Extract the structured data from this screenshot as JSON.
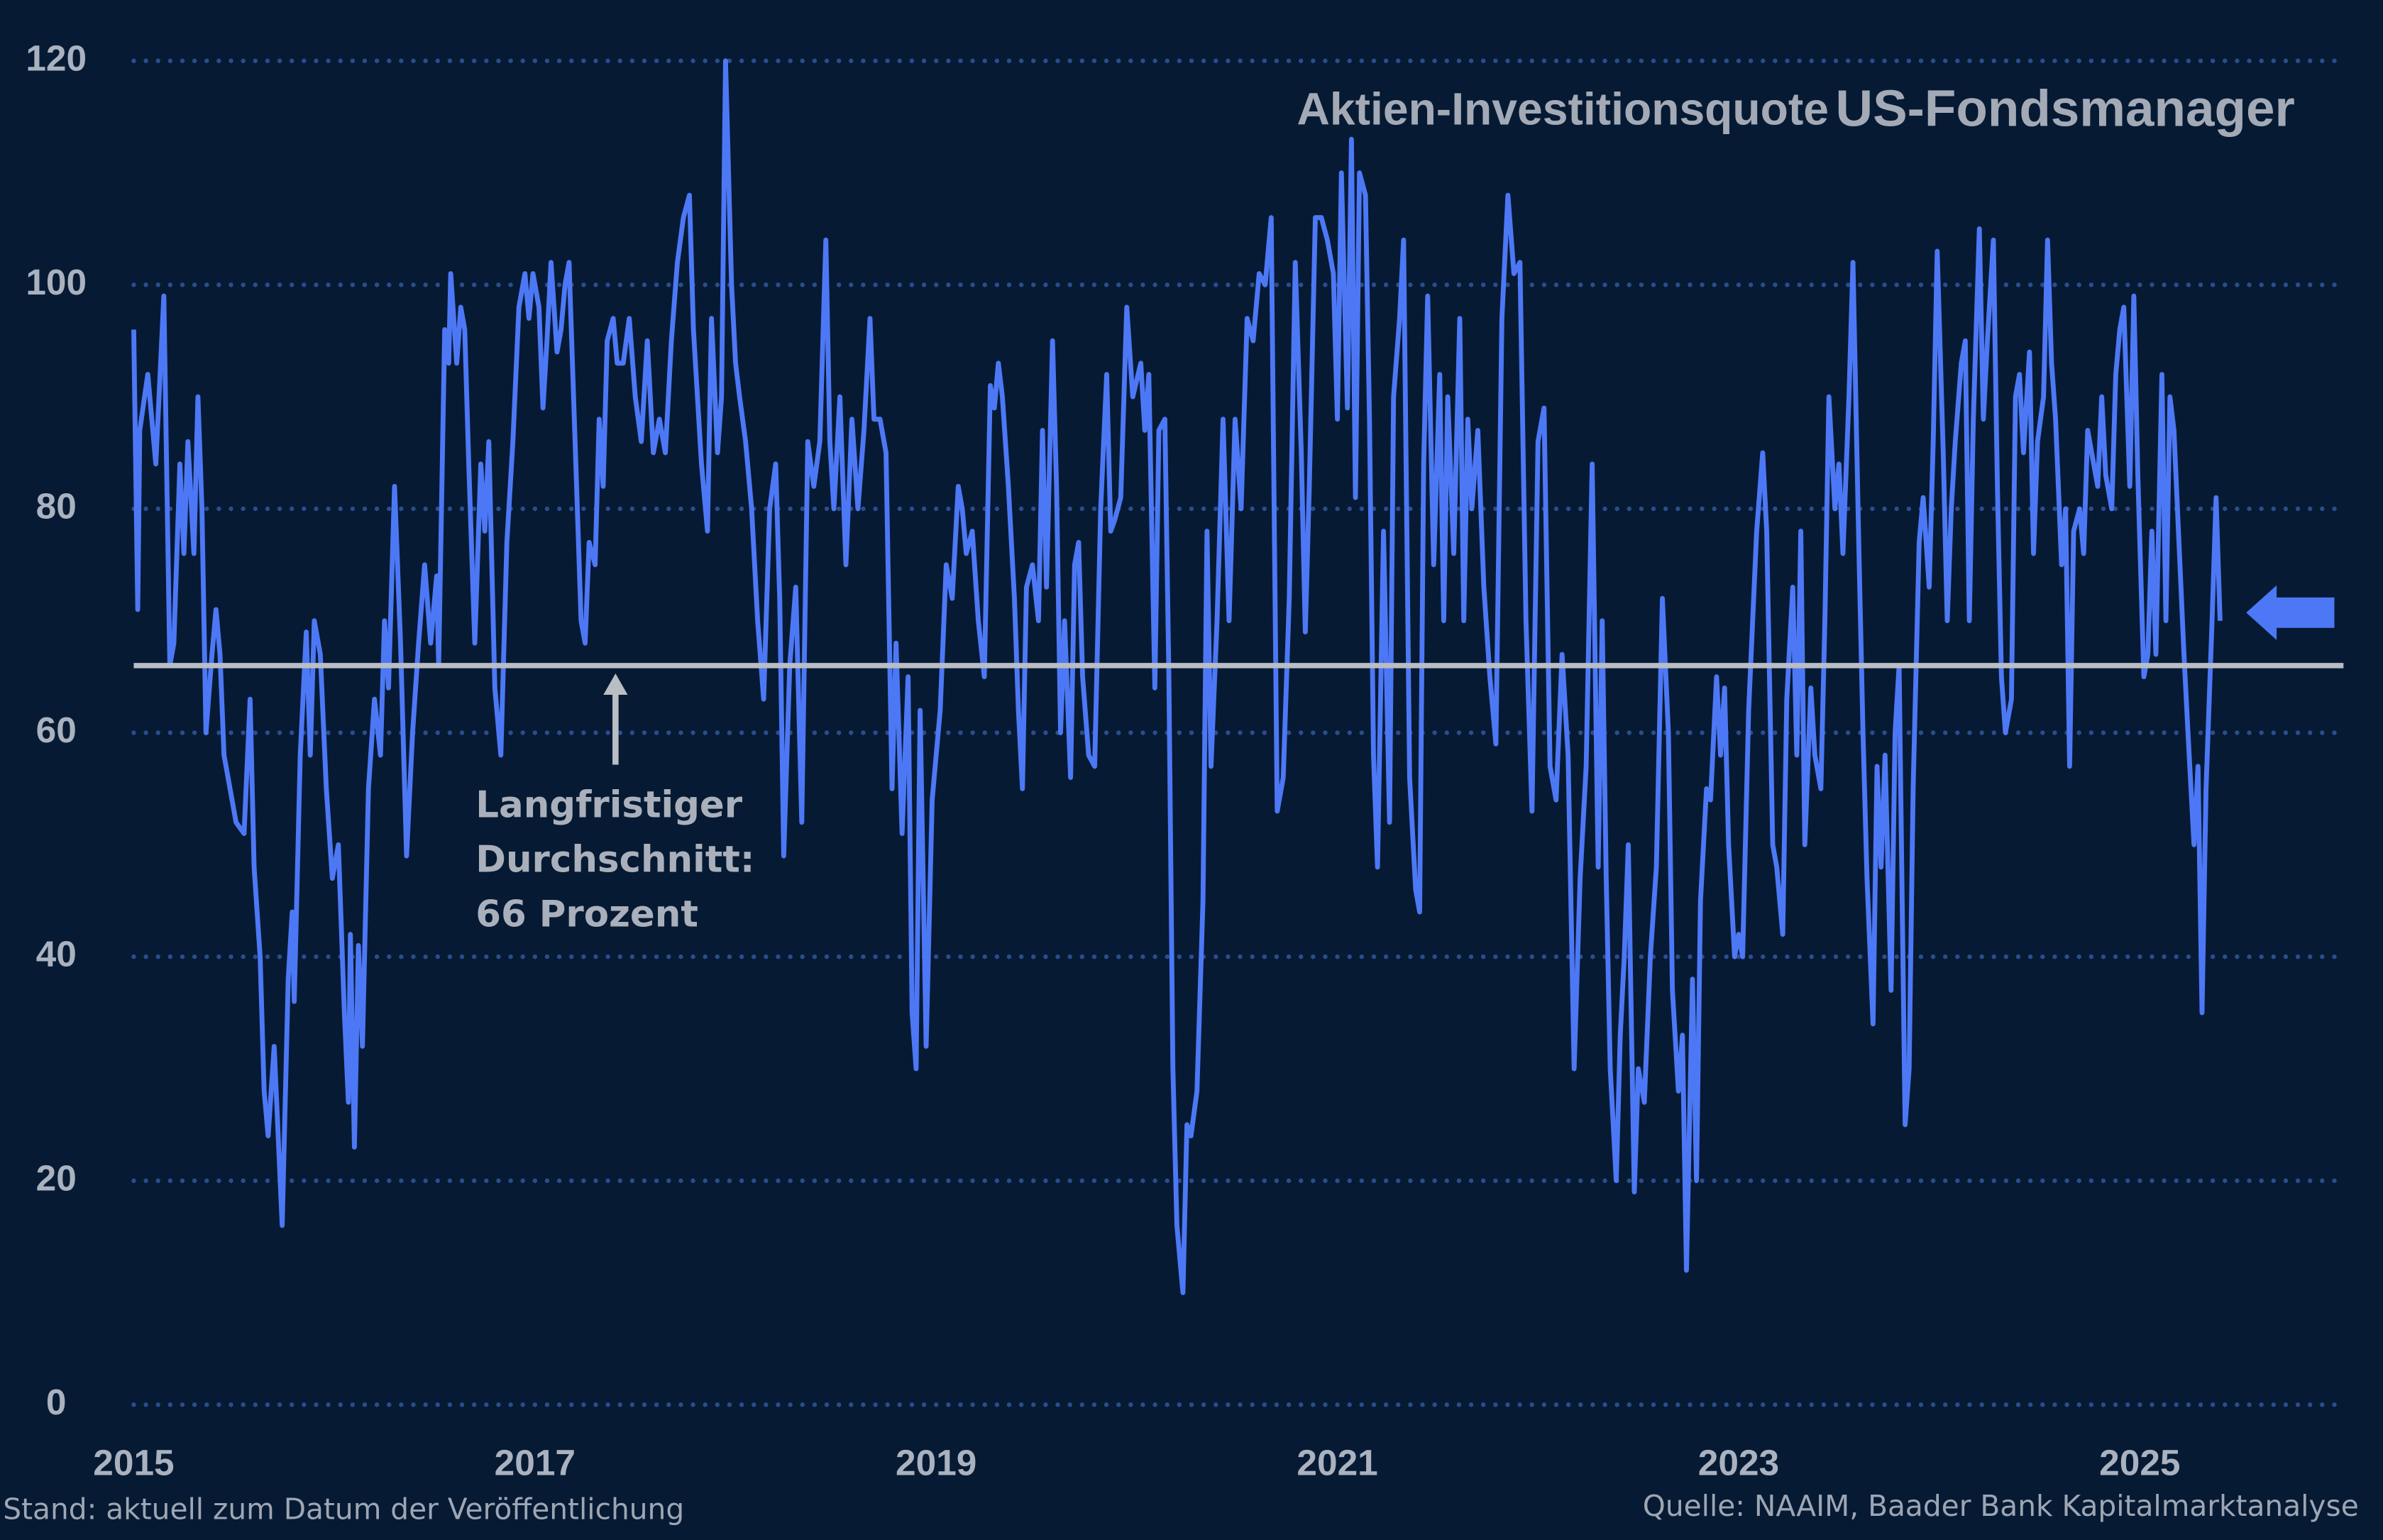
{
  "chart_data": {
    "type": "line",
    "title": [
      "Aktien-Investitionsquote",
      "US-Fondsmanager"
    ],
    "annotation": [
      "Langfristiger",
      "Durchschnitt:",
      "66 Prozent"
    ],
    "reference_line": 66,
    "footer_left": "Stand: aktuell zum Datum der Veröffentlichung",
    "footer_right": "Quelle: NAAIM, Baader Bank Kapitalmarktanalyse",
    "color": "#4d78f5",
    "reference_color": "#b9bdc4",
    "grid": true,
    "xlim": [
      2015,
      2026
    ],
    "xticks": [
      2015,
      2017,
      2019,
      2021,
      2023,
      2025
    ],
    "ylim": [
      0,
      120
    ],
    "yticks": [
      0,
      20,
      40,
      60,
      80,
      100,
      120
    ],
    "x": [
      2015,
      2015.02,
      2015.03,
      2015.07,
      2015.09,
      2015.11,
      2015.15,
      2015.18,
      2015.2,
      2015.23,
      2015.25,
      2015.27,
      2015.3,
      2015.32,
      2015.34,
      2015.36,
      2015.39,
      2015.41,
      2015.43,
      2015.45,
      2015.48,
      2015.51,
      2015.55,
      2015.58,
      2015.6,
      2015.63,
      2015.65,
      2015.67,
      2015.7,
      2015.74,
      2015.77,
      2015.79,
      2015.8,
      2015.83,
      2015.86,
      2015.88,
      2015.9,
      2015.93,
      2015.96,
      2015.99,
      2016.02,
      2016.05,
      2016.07,
      2016.08,
      2016.1,
      2016.12,
      2016.14,
      2016.17,
      2016.2,
      2016.23,
      2016.25,
      2016.27,
      2016.3,
      2016.33,
      2016.36,
      2016.39,
      2016.42,
      2016.45,
      2016.48,
      2016.51,
      2016.52,
      2016.55,
      2016.57,
      2016.58,
      2016.61,
      2016.63,
      2016.65,
      2016.67,
      2016.7,
      2016.73,
      2016.75,
      2016.77,
      2016.8,
      2016.83,
      2016.86,
      2016.89,
      2016.92,
      2016.95,
      2016.97,
      2016.99,
      2017.02,
      2017.04,
      2017.06,
      2017.08,
      2017.11,
      2017.13,
      2017.15,
      2017.17,
      2017.2,
      2017.23,
      2017.25,
      2017.27,
      2017.3,
      2017.32,
      2017.34,
      2017.36,
      2017.39,
      2017.41,
      2017.44,
      2017.47,
      2017.5,
      2017.53,
      2017.56,
      2017.59,
      2017.62,
      2017.65,
      2017.68,
      2017.71,
      2017.74,
      2017.77,
      2017.79,
      2017.81,
      2017.83,
      2017.86,
      2017.88,
      2017.91,
      2017.93,
      2017.95,
      2017.98,
      2018,
      2018.02,
      2018.05,
      2018.08,
      2018.11,
      2018.14,
      2018.17,
      2018.2,
      2018.22,
      2018.24,
      2018.27,
      2018.3,
      2018.33,
      2018.36,
      2018.39,
      2018.42,
      2018.45,
      2018.47,
      2018.49,
      2018.52,
      2018.55,
      2018.58,
      2018.61,
      2018.64,
      2018.67,
      2018.69,
      2018.72,
      2018.75,
      2018.78,
      2018.8,
      2018.83,
      2018.86,
      2018.88,
      2018.9,
      2018.92,
      2018.95,
      2018.98,
      2019.02,
      2019.05,
      2019.08,
      2019.11,
      2019.13,
      2019.15,
      2019.18,
      2019.21,
      2019.24,
      2019.27,
      2019.29,
      2019.31,
      2019.33,
      2019.36,
      2019.39,
      2019.41,
      2019.43,
      2019.45,
      2019.48,
      2019.51,
      2019.53,
      2019.55,
      2019.58,
      2019.6,
      2019.62,
      2019.64,
      2019.67,
      2019.69,
      2019.71,
      2019.73,
      2019.76,
      2019.79,
      2019.82,
      2019.85,
      2019.87,
      2019.89,
      2019.92,
      2019.95,
      2019.98,
      2020.02,
      2020.04,
      2020.06,
      2020.09,
      2020.11,
      2020.14,
      2020.16,
      2020.18,
      2020.2,
      2020.23,
      2020.25,
      2020.27,
      2020.3,
      2020.33,
      2020.35,
      2020.37,
      2020.4,
      2020.43,
      2020.46,
      2020.49,
      2020.52,
      2020.55,
      2020.58,
      2020.61,
      2020.64,
      2020.67,
      2020.7,
      2020.73,
      2020.76,
      2020.79,
      2020.82,
      2020.84,
      2020.86,
      2020.89,
      2020.92,
      2020.95,
      2020.98,
      2021,
      2021.02,
      2021.05,
      2021.07,
      2021.09,
      2021.11,
      2021.14,
      2021.16,
      2021.18,
      2021.2,
      2021.23,
      2021.26,
      2021.28,
      2021.31,
      2021.33,
      2021.36,
      2021.39,
      2021.41,
      2021.43,
      2021.45,
      2021.48,
      2021.51,
      2021.53,
      2021.55,
      2021.58,
      2021.61,
      2021.63,
      2021.65,
      2021.67,
      2021.7,
      2021.73,
      2021.76,
      2021.79,
      2021.82,
      2021.85,
      2021.88,
      2021.91,
      2021.94,
      2021.97,
      2022,
      2022.03,
      2022.06,
      2022.09,
      2022.12,
      2022.15,
      2022.18,
      2022.21,
      2022.24,
      2022.27,
      2022.3,
      2022.32,
      2022.34,
      2022.36,
      2022.39,
      2022.41,
      2022.43,
      2022.45,
      2022.48,
      2022.5,
      2022.53,
      2022.56,
      2022.59,
      2022.62,
      2022.65,
      2022.67,
      2022.7,
      2022.72,
      2022.74,
      2022.77,
      2022.79,
      2022.81,
      2022.84,
      2022.86,
      2022.89,
      2022.91,
      2022.93,
      2022.95,
      2022.98,
      2023,
      2023.02,
      2023.05,
      2023.07,
      2023.09,
      2023.12,
      2023.14,
      2023.17,
      2023.19,
      2023.22,
      2023.24,
      2023.27,
      2023.29,
      2023.31,
      2023.33,
      2023.36,
      2023.38,
      2023.41,
      2023.43,
      2023.45,
      2023.48,
      2023.5,
      2023.52,
      2023.55,
      2023.57,
      2023.6,
      2023.62,
      2023.64,
      2023.67,
      2023.69,
      2023.71,
      2023.73,
      2023.76,
      2023.78,
      2023.8,
      2023.83,
      2023.85,
      2023.87,
      2023.9,
      2023.92,
      2023.95,
      2023.97,
      2023.99,
      2024.02,
      2024.04,
      2024.06,
      2024.08,
      2024.11,
      2024.13,
      2024.15,
      2024.17,
      2024.2,
      2024.22,
      2024.24,
      2024.27,
      2024.29,
      2024.31,
      2024.33,
      2024.36,
      2024.38,
      2024.4,
      2024.42,
      2024.45,
      2024.47,
      2024.49,
      2024.52,
      2024.54,
      2024.56,
      2024.58,
      2024.61,
      2024.63,
      2024.65,
      2024.67,
      2024.7,
      2024.72,
      2024.74,
      2024.77,
      2024.79,
      2024.81,
      2024.83,
      2024.86,
      2024.88,
      2024.9,
      2024.92,
      2024.95,
      2024.97,
      2024.99,
      2025.02,
      2025.04,
      2025.06,
      2025.08,
      2025.11,
      2025.13,
      2025.15,
      2025.17,
      2025.2,
      2025.22,
      2025.24,
      2025.27,
      2025.29,
      2025.31,
      2025.33,
      2025.36,
      2025.38,
      2025.4
    ],
    "values": [
      96,
      71,
      87,
      92,
      88,
      84,
      99,
      66,
      68,
      84,
      76,
      86,
      76,
      90,
      80,
      60,
      67,
      71,
      67,
      58,
      55,
      52,
      51,
      63,
      48,
      40,
      28,
      24,
      32,
      16,
      38,
      44,
      36,
      58,
      69,
      58,
      70,
      67,
      55,
      47,
      50,
      35,
      27,
      42,
      23,
      41,
      32,
      55,
      63,
      58,
      70,
      64,
      82,
      68,
      49,
      60,
      68,
      75,
      68,
      74,
      66,
      96,
      93,
      101,
      93,
      98,
      96,
      84,
      68,
      84,
      78,
      86,
      64,
      58,
      77,
      86,
      98,
      101,
      97,
      101,
      98,
      89,
      95,
      102,
      94,
      96,
      100,
      102,
      86,
      70,
      68,
      77,
      75,
      88,
      82,
      95,
      97,
      93,
      93,
      97,
      90,
      86,
      95,
      85,
      88,
      85,
      95,
      102,
      106,
      108,
      96,
      90,
      84,
      78,
      97,
      85,
      90,
      120,
      100,
      93,
      90,
      86,
      80,
      70,
      63,
      80,
      84,
      72,
      49,
      66,
      73,
      52,
      86,
      82,
      86,
      104,
      86,
      80,
      90,
      75,
      88,
      80,
      87,
      97,
      88,
      88,
      85,
      55,
      68,
      51,
      65,
      35,
      30,
      62,
      32,
      54,
      62,
      75,
      72,
      82,
      80,
      76,
      78,
      70,
      65,
      91,
      89,
      93,
      90,
      82,
      72,
      62,
      55,
      73,
      75,
      70,
      87,
      73,
      95,
      82,
      60,
      70,
      56,
      75,
      77,
      65,
      58,
      57,
      80,
      92,
      78,
      79,
      81,
      98,
      90,
      93,
      87,
      92,
      64,
      87,
      88,
      65,
      30,
      16,
      10,
      25,
      24,
      28,
      45,
      78,
      57,
      70,
      88,
      70,
      88,
      80,
      97,
      95,
      101,
      100,
      106,
      53,
      56,
      72,
      102,
      85,
      69,
      82,
      106,
      106,
      104,
      101,
      88,
      110,
      89,
      113,
      81,
      110,
      108,
      88,
      58,
      48,
      78,
      52,
      90,
      97,
      104,
      56,
      46,
      44,
      84,
      99,
      75,
      92,
      70,
      90,
      76,
      97,
      70,
      88,
      80,
      87,
      73,
      65,
      59,
      97,
      108,
      101,
      102,
      70,
      53,
      86,
      89,
      57,
      54,
      67,
      58,
      30,
      47,
      57,
      84,
      48,
      70,
      47,
      30,
      20,
      33,
      40,
      50,
      19,
      30,
      27,
      40,
      48,
      72,
      60,
      37,
      28,
      33,
      12,
      38,
      20,
      45,
      55,
      54,
      65,
      58,
      64,
      50,
      40,
      42,
      40,
      62,
      70,
      78,
      85,
      78,
      50,
      48,
      42,
      63,
      73,
      58,
      78,
      50,
      64,
      58,
      55,
      70,
      90,
      80,
      84,
      76,
      90,
      102,
      76,
      60,
      47,
      34,
      57,
      48,
      58,
      37,
      60,
      66,
      25,
      30,
      55,
      77,
      81,
      73,
      86,
      103,
      85,
      70,
      80,
      86,
      93,
      95,
      70,
      88,
      105,
      88,
      95,
      104,
      82,
      65,
      60,
      63,
      90,
      92,
      85,
      94,
      76,
      86,
      90,
      104,
      93,
      88,
      75,
      80,
      57,
      78,
      80,
      76,
      87,
      84,
      82,
      90,
      83,
      80,
      92,
      96,
      98,
      82,
      99,
      83,
      65,
      67,
      78,
      67,
      92,
      70,
      90,
      87,
      75,
      67,
      60,
      50,
      57,
      35,
      55,
      70,
      81,
      70
    ]
  }
}
